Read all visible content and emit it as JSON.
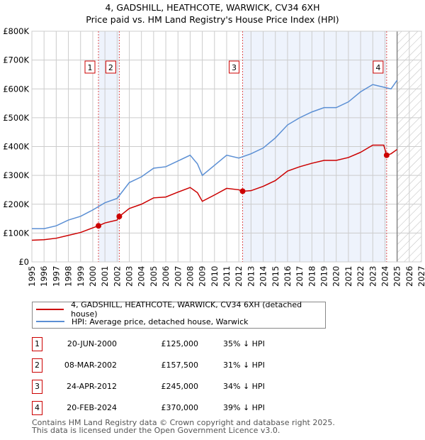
{
  "chart_data": {
    "type": "line",
    "title": "4, GADSHILL, HEATHCOTE, WARWICK, CV34 6XH",
    "subtitle": "Price paid vs. HM Land Registry's House Price Index (HPI)",
    "xlim": [
      1995,
      2027
    ],
    "ylim": [
      0,
      800000
    ],
    "yticks": [
      0,
      100000,
      200000,
      300000,
      400000,
      500000,
      600000,
      700000,
      800000
    ],
    "ytick_labels": [
      "£0",
      "£100K",
      "£200K",
      "£300K",
      "£400K",
      "£500K",
      "£600K",
      "£700K",
      "£800K"
    ],
    "xticks": [
      "1995",
      "1996",
      "1997",
      "1998",
      "1999",
      "2000",
      "2001",
      "2002",
      "2003",
      "2004",
      "2005",
      "2006",
      "2007",
      "2008",
      "2009",
      "2010",
      "2011",
      "2012",
      "2013",
      "2014",
      "2015",
      "2016",
      "2017",
      "2018",
      "2019",
      "2020",
      "2021",
      "2022",
      "2023",
      "2024",
      "2025",
      "2026",
      "2027"
    ],
    "grid": true,
    "data_end": 2025,
    "series": [
      {
        "name": "4, GADSHILL, HEATHCOTE, WARWICK, CV34 6XH (detached house)",
        "color": "#cc0000",
        "x": [
          1995,
          1996,
          1997,
          1998,
          1999,
          2000,
          2000.47,
          2001,
          2002,
          2002.18,
          2003,
          2004,
          2005,
          2006,
          2007,
          2008,
          2008.6,
          2009,
          2010,
          2011,
          2012,
          2012.31,
          2013,
          2014,
          2015,
          2016,
          2017,
          2018,
          2019,
          2020,
          2021,
          2022,
          2023,
          2023.9,
          2024.14,
          2024.5,
          2025
        ],
        "y": [
          75000,
          77000,
          82000,
          92000,
          102000,
          118000,
          125000,
          135000,
          145000,
          157500,
          185000,
          200000,
          222000,
          225000,
          242000,
          258000,
          240000,
          210000,
          232000,
          255000,
          250000,
          245000,
          247000,
          262000,
          282000,
          315000,
          330000,
          342000,
          352000,
          352000,
          362000,
          380000,
          405000,
          405000,
          370000,
          375000,
          390000
        ]
      },
      {
        "name": "HPI: Average price, detached house, Warwick",
        "color": "#5b8fd4",
        "x": [
          1995,
          1996,
          1997,
          1998,
          1999,
          2000,
          2001,
          2002,
          2003,
          2004,
          2005,
          2006,
          2007,
          2008,
          2008.6,
          2009,
          2010,
          2011,
          2012,
          2013,
          2014,
          2015,
          2016,
          2017,
          2018,
          2019,
          2020,
          2021,
          2022,
          2023,
          2024,
          2024.5,
          2025
        ],
        "y": [
          115000,
          115000,
          125000,
          145000,
          158000,
          180000,
          205000,
          220000,
          275000,
          295000,
          325000,
          330000,
          350000,
          370000,
          340000,
          300000,
          335000,
          370000,
          360000,
          375000,
          395000,
          430000,
          475000,
          500000,
          520000,
          535000,
          535000,
          555000,
          590000,
          615000,
          605000,
          600000,
          630000
        ]
      }
    ],
    "sales": [
      {
        "label": "1",
        "x": 2000.47,
        "y": 125000
      },
      {
        "label": "2",
        "x": 2002.18,
        "y": 157500
      },
      {
        "label": "3",
        "x": 2012.31,
        "y": 245000
      },
      {
        "label": "4",
        "x": 2024.14,
        "y": 370000
      }
    ],
    "shaded": [
      [
        2000.47,
        2002.18
      ],
      [
        2012.31,
        2024.14
      ]
    ]
  },
  "legend": [
    "4, GADSHILL, HEATHCOTE, WARWICK, CV34 6XH (detached house)",
    "HPI: Average price, detached house, Warwick"
  ],
  "table": [
    {
      "num": "1",
      "date": "20-JUN-2000",
      "price": "£125,000",
      "pct": "35% ↓ HPI"
    },
    {
      "num": "2",
      "date": "08-MAR-2002",
      "price": "£157,500",
      "pct": "31% ↓ HPI"
    },
    {
      "num": "3",
      "date": "24-APR-2012",
      "price": "£245,000",
      "pct": "34% ↓ HPI"
    },
    {
      "num": "4",
      "date": "20-FEB-2024",
      "price": "£370,000",
      "pct": "39% ↓ HPI"
    }
  ],
  "footer": [
    "Contains HM Land Registry data © Crown copyright and database right 2025.",
    "This data is licensed under the Open Government Licence v3.0."
  ]
}
